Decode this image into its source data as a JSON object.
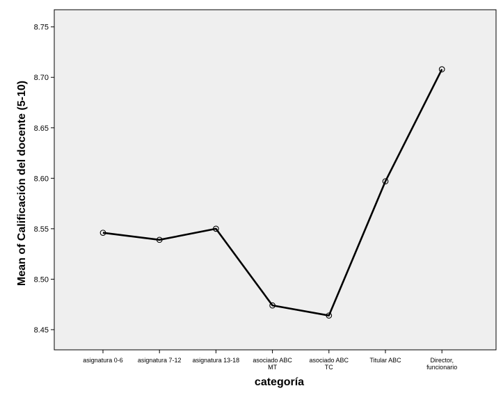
{
  "chart_data": {
    "type": "line",
    "title": "",
    "xlabel": "categoría",
    "ylabel": "Mean of Calificación del docente (5-10)",
    "categories": [
      [
        "asignatura 0-6"
      ],
      [
        "asignatura 7-12"
      ],
      [
        "asignatura 13-18"
      ],
      [
        "asociado ABC",
        "MT"
      ],
      [
        "asociado ABC",
        "TC"
      ],
      [
        "Titular ABC"
      ],
      [
        "Director,",
        "funcionario"
      ]
    ],
    "values": [
      8.546,
      8.539,
      8.55,
      8.474,
      8.464,
      8.597,
      8.708
    ],
    "ylim": [
      8.43,
      8.767
    ],
    "yticks": [
      "8.45",
      "8.50",
      "8.55",
      "8.60",
      "8.65",
      "8.70",
      "8.75"
    ],
    "grid": false,
    "colors": {
      "plot_background": "#efefef",
      "line": "#000000",
      "axis": "#000000"
    }
  }
}
